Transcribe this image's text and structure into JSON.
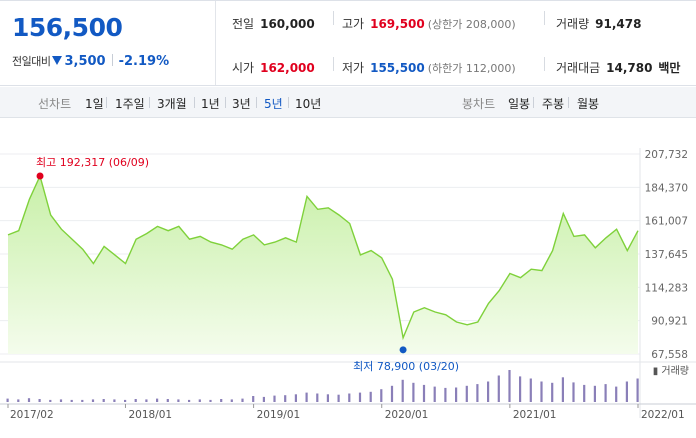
{
  "header": {
    "price": "156,500",
    "change_label": "전일대비",
    "change_value": "3,500",
    "change_pct": "-2.19%",
    "prev_close": {
      "label": "전일",
      "value": "160,000"
    },
    "open": {
      "label": "시가",
      "value": "162,000"
    },
    "high": {
      "label": "고가",
      "value": "169,500",
      "limit": "(상한가 208,000)"
    },
    "low": {
      "label": "저가",
      "value": "155,500",
      "limit": "(하한가 112,000)"
    },
    "volume": {
      "label": "거래량",
      "value": "91,478"
    },
    "amount": {
      "label": "거래대금",
      "value": "14,780",
      "unit": "백만"
    }
  },
  "toolbar": {
    "line_label": "선차트",
    "periods": [
      "1일",
      "1주일",
      "3개월",
      "1년",
      "3년",
      "5년",
      "10년"
    ],
    "active_period": "5년",
    "candle_label": "봉차트",
    "candles": [
      "일봉",
      "주봉",
      "월봉"
    ]
  },
  "colors": {
    "up": "#e0001e",
    "down": "#1259c3",
    "line": "#7fd13b",
    "area_top": "#c8f0a8",
    "area_bottom": "#f4fcec",
    "volume_bar": "#8a7fb8"
  },
  "chart_data": {
    "type": "area",
    "y_ticks": [
      "207,732",
      "184,370",
      "161,007",
      "137,645",
      "114,283",
      "90,921",
      "67,558"
    ],
    "ylim": [
      67558,
      207732
    ],
    "x_ticks": [
      {
        "label": "2017/02",
        "x": "2017-02"
      },
      {
        "label": "2018/01",
        "x": "2018-01"
      },
      {
        "label": "2019/01",
        "x": "2019-01"
      },
      {
        "label": "2020/01",
        "x": "2020-01"
      },
      {
        "label": "2021/01",
        "x": "2021-01"
      },
      {
        "label": "2022/01",
        "x": "2022-01"
      }
    ],
    "x": [
      "2017-02",
      "2017-03",
      "2017-04",
      "2017-05",
      "2017-06",
      "2017-07",
      "2017-08",
      "2017-09",
      "2017-10",
      "2017-11",
      "2017-12",
      "2018-01",
      "2018-02",
      "2018-03",
      "2018-04",
      "2018-05",
      "2018-06",
      "2018-07",
      "2018-08",
      "2018-09",
      "2018-10",
      "2018-11",
      "2018-12",
      "2019-01",
      "2019-02",
      "2019-03",
      "2019-04",
      "2019-05",
      "2019-06",
      "2019-07",
      "2019-08",
      "2019-09",
      "2019-10",
      "2019-11",
      "2019-12",
      "2020-01",
      "2020-02",
      "2020-03",
      "2020-04",
      "2020-05",
      "2020-06",
      "2020-07",
      "2020-08",
      "2020-09",
      "2020-10",
      "2020-11",
      "2020-12",
      "2021-01",
      "2021-02",
      "2021-03",
      "2021-04",
      "2021-05",
      "2021-06",
      "2021-07",
      "2021-08",
      "2021-09",
      "2021-10",
      "2021-11",
      "2021-12",
      "2022-01"
    ],
    "values": [
      151000,
      154000,
      176000,
      192317,
      165000,
      155000,
      148000,
      141000,
      131000,
      143000,
      137000,
      131000,
      148000,
      152000,
      157000,
      154000,
      157000,
      148000,
      150000,
      146000,
      144000,
      141000,
      148000,
      151000,
      144000,
      146000,
      149000,
      146000,
      178000,
      169000,
      170000,
      165000,
      159000,
      137000,
      140000,
      135000,
      120000,
      78900,
      97000,
      100000,
      97000,
      95000,
      90000,
      88000,
      90000,
      103000,
      112000,
      124000,
      121000,
      127000,
      126000,
      140000,
      166000,
      150000,
      151000,
      142000,
      149000,
      155000,
      140000,
      154000
    ],
    "max_marker": {
      "label": "최고",
      "value": "192,317",
      "date": "(06/09)",
      "x": "2017-05",
      "y": 192317
    },
    "min_marker": {
      "label": "최저",
      "value": "78,900",
      "date": "(03/20)",
      "x": "2020-03",
      "y": 78900
    },
    "volume_label": "거래량",
    "volume": [
      8,
      6,
      9,
      7,
      5,
      6,
      5,
      5,
      6,
      7,
      6,
      5,
      7,
      6,
      8,
      7,
      6,
      5,
      6,
      5,
      7,
      6,
      8,
      14,
      12,
      15,
      16,
      18,
      22,
      20,
      18,
      17,
      20,
      22,
      24,
      30,
      38,
      52,
      45,
      40,
      36,
      33,
      34,
      38,
      42,
      48,
      62,
      75,
      60,
      55,
      48,
      45,
      58,
      46,
      40,
      38,
      42,
      36,
      48,
      55
    ]
  }
}
